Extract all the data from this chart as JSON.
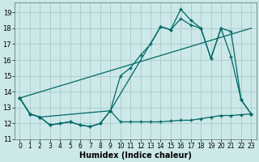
{
  "xlabel": "Humidex (Indice chaleur)",
  "background_color": "#cce8e8",
  "grid_color": "#aacaca",
  "line_color": "#006868",
  "xlim": [
    -0.5,
    23.5
  ],
  "ylim": [
    11.0,
    19.6
  ],
  "yticks": [
    11,
    12,
    13,
    14,
    15,
    16,
    17,
    18,
    19
  ],
  "xticks": [
    0,
    1,
    2,
    3,
    4,
    5,
    6,
    7,
    8,
    9,
    10,
    11,
    12,
    13,
    14,
    15,
    16,
    17,
    18,
    19,
    20,
    21,
    22,
    23
  ],
  "line_zigzag_x": [
    0,
    1,
    2,
    3,
    4,
    5,
    6,
    7,
    8,
    9,
    10,
    11,
    12,
    13,
    14,
    15,
    16,
    17,
    18,
    19,
    20,
    21,
    22,
    23
  ],
  "line_zigzag_y": [
    13.6,
    12.6,
    12.4,
    11.9,
    12.0,
    12.1,
    11.9,
    11.8,
    12.0,
    12.8,
    12.1,
    12.1,
    12.1,
    12.1,
    12.1,
    12.15,
    12.2,
    12.2,
    12.3,
    12.4,
    12.5,
    12.5,
    12.55,
    12.6
  ],
  "line_main_x": [
    0,
    1,
    2,
    3,
    4,
    5,
    6,
    7,
    8,
    9,
    10,
    11,
    12,
    13,
    14,
    15,
    16,
    17,
    18,
    19,
    20,
    21,
    22,
    23
  ],
  "line_main_y": [
    13.6,
    12.6,
    12.4,
    11.9,
    12.0,
    12.1,
    11.9,
    11.8,
    12.0,
    12.8,
    15.0,
    15.5,
    16.3,
    17.0,
    18.1,
    17.9,
    18.6,
    18.2,
    18.0,
    16.1,
    18.0,
    17.8,
    13.5,
    12.6
  ],
  "line_peak_x": [
    0,
    1,
    2,
    9,
    14,
    15,
    16,
    17,
    18,
    19,
    20,
    21,
    22,
    23
  ],
  "line_peak_y": [
    13.6,
    12.6,
    12.4,
    12.8,
    18.1,
    17.9,
    19.2,
    18.5,
    18.0,
    16.1,
    18.0,
    16.2,
    13.5,
    12.6
  ],
  "line_trend_x": [
    0,
    23
  ],
  "line_trend_y": [
    13.6,
    18.0
  ],
  "marker_size": 2.5,
  "linewidth": 0.9
}
